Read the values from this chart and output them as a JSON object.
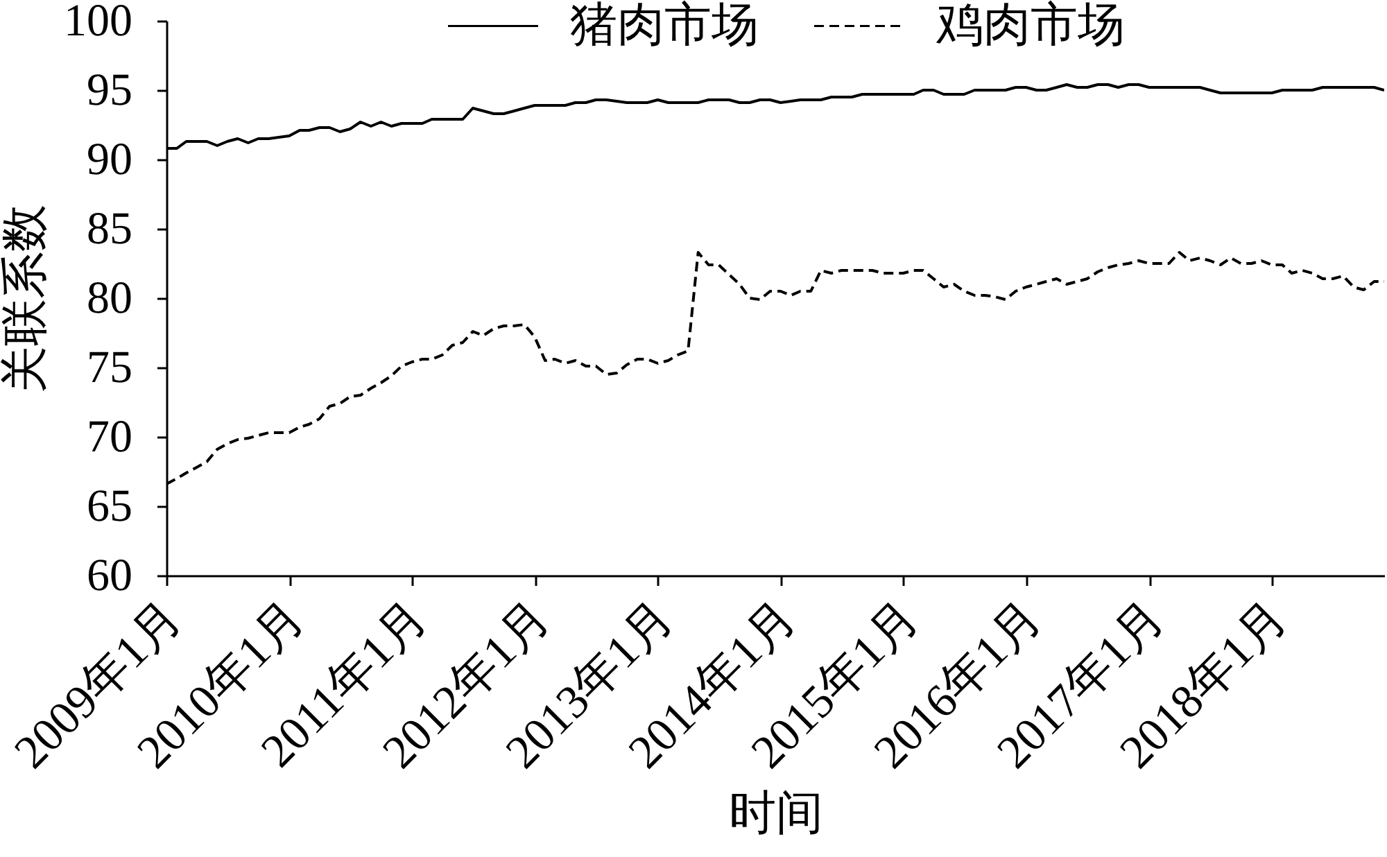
{
  "chart_data": {
    "type": "line",
    "xlabel": "时间",
    "ylabel": "关联系数",
    "legend": "top",
    "x": [
      "2009-01",
      "2009-02",
      "2009-03",
      "2009-04",
      "2009-05",
      "2009-06",
      "2009-07",
      "2009-08",
      "2009-09",
      "2009-10",
      "2009-11",
      "2009-12",
      "2010-01",
      "2010-02",
      "2010-03",
      "2010-04",
      "2010-05",
      "2010-06",
      "2010-07",
      "2010-08",
      "2010-09",
      "2010-10",
      "2010-11",
      "2010-12",
      "2011-01",
      "2011-02",
      "2011-03",
      "2011-04",
      "2011-05",
      "2011-06",
      "2011-07",
      "2011-08",
      "2011-09",
      "2011-10",
      "2011-11",
      "2011-12",
      "2012-01",
      "2012-02",
      "2012-03",
      "2012-04",
      "2012-05",
      "2012-06",
      "2012-07",
      "2012-08",
      "2012-09",
      "2012-10",
      "2012-11",
      "2012-12",
      "2013-01",
      "2013-02",
      "2013-03",
      "2013-04",
      "2013-05",
      "2013-06",
      "2013-07",
      "2013-08",
      "2013-09",
      "2013-10",
      "2013-11",
      "2013-12",
      "2014-01",
      "2014-02",
      "2014-03",
      "2014-04",
      "2014-05",
      "2014-06",
      "2014-07",
      "2014-08",
      "2014-09",
      "2014-10",
      "2014-11",
      "2014-12",
      "2015-01",
      "2015-02",
      "2015-03",
      "2015-04",
      "2015-05",
      "2015-06",
      "2015-07",
      "2015-08",
      "2015-09",
      "2015-10",
      "2015-11",
      "2015-12",
      "2016-01",
      "2016-02",
      "2016-03",
      "2016-04",
      "2016-05",
      "2016-06",
      "2016-07",
      "2016-08",
      "2016-09",
      "2016-10",
      "2016-11",
      "2016-12",
      "2017-01",
      "2017-02",
      "2017-03",
      "2017-04",
      "2017-05",
      "2017-06",
      "2017-07",
      "2017-08",
      "2017-09",
      "2017-10",
      "2017-11",
      "2017-12",
      "2018-01",
      "2018-02",
      "2018-03",
      "2018-04",
      "2018-05",
      "2018-06",
      "2018-07",
      "2018-08",
      "2018-09",
      "2018-10",
      "2018-11",
      "2018-12"
    ],
    "xlim": [
      "2009-01",
      "2018-12"
    ],
    "xticks": [
      {
        "value": "2009-01",
        "label": "2009年1月"
      },
      {
        "value": "2010-01",
        "label": "2010年1月"
      },
      {
        "value": "2011-01",
        "label": "2011年1月"
      },
      {
        "value": "2012-01",
        "label": "2012年1月"
      },
      {
        "value": "2013-01",
        "label": "2013年1月"
      },
      {
        "value": "2014-01",
        "label": "2014年1月"
      },
      {
        "value": "2015-01",
        "label": "2015年1月"
      },
      {
        "value": "2016-01",
        "label": "2016年1月"
      },
      {
        "value": "2017-01",
        "label": "2017年1月"
      },
      {
        "value": "2018-01",
        "label": "2018年1月"
      }
    ],
    "ylim": [
      60,
      100
    ],
    "yticks": [
      60,
      65,
      70,
      75,
      80,
      85,
      90,
      95,
      100
    ],
    "series": [
      {
        "name": "猪肉市场",
        "color": "#000000",
        "line_style": "solid",
        "values": [
          90.8,
          90.8,
          91.3,
          91.3,
          91.3,
          91.0,
          91.3,
          91.5,
          91.2,
          91.5,
          91.5,
          91.6,
          91.7,
          92.1,
          92.1,
          92.3,
          92.3,
          92.0,
          92.2,
          92.7,
          92.4,
          92.7,
          92.4,
          92.6,
          92.6,
          92.6,
          92.9,
          92.9,
          92.9,
          92.9,
          93.7,
          93.5,
          93.3,
          93.3,
          93.5,
          93.7,
          93.9,
          93.9,
          93.9,
          93.9,
          94.1,
          94.1,
          94.3,
          94.3,
          94.2,
          94.1,
          94.1,
          94.1,
          94.3,
          94.1,
          94.1,
          94.1,
          94.1,
          94.3,
          94.3,
          94.3,
          94.1,
          94.1,
          94.3,
          94.3,
          94.1,
          94.2,
          94.3,
          94.3,
          94.3,
          94.5,
          94.5,
          94.5,
          94.7,
          94.7,
          94.7,
          94.7,
          94.7,
          94.7,
          95.0,
          95.0,
          94.7,
          94.7,
          94.7,
          95.0,
          95.0,
          95.0,
          95.0,
          95.2,
          95.2,
          95.0,
          95.0,
          95.2,
          95.4,
          95.2,
          95.2,
          95.4,
          95.4,
          95.2,
          95.4,
          95.4,
          95.2,
          95.2,
          95.2,
          95.2,
          95.2,
          95.2,
          95.0,
          94.8,
          94.8,
          94.8,
          94.8,
          94.8,
          94.8,
          95.0,
          95.0,
          95.0,
          95.0,
          95.2,
          95.2,
          95.2,
          95.2,
          95.2,
          95.2,
          95.0
        ]
      },
      {
        "name": "鸡肉市场",
        "color": "#000000",
        "line_style": "dashed",
        "values": [
          66.6,
          67.0,
          67.4,
          67.8,
          68.2,
          69.1,
          69.5,
          69.8,
          69.9,
          70.1,
          70.3,
          70.3,
          70.3,
          70.7,
          70.9,
          71.3,
          72.2,
          72.4,
          72.9,
          73.0,
          73.5,
          73.9,
          74.4,
          75.1,
          75.4,
          75.6,
          75.6,
          75.9,
          76.6,
          76.8,
          77.6,
          77.3,
          77.8,
          78.0,
          78.0,
          78.1,
          77.2,
          75.5,
          75.6,
          75.3,
          75.5,
          75.1,
          75.1,
          74.5,
          74.6,
          75.2,
          75.6,
          75.6,
          75.3,
          75.5,
          75.9,
          76.2,
          83.3,
          82.4,
          82.4,
          81.7,
          81.0,
          80.0,
          79.9,
          80.5,
          80.5,
          80.2,
          80.5,
          80.5,
          82.0,
          81.8,
          82.0,
          82.0,
          82.0,
          82.0,
          81.8,
          81.8,
          81.8,
          82.0,
          82.0,
          81.4,
          80.8,
          81.0,
          80.5,
          80.2,
          80.2,
          80.1,
          79.9,
          80.5,
          80.8,
          81.0,
          81.2,
          81.4,
          81.0,
          81.2,
          81.4,
          81.9,
          82.2,
          82.4,
          82.5,
          82.7,
          82.5,
          82.5,
          82.5,
          83.3,
          82.7,
          82.9,
          82.7,
          82.4,
          82.9,
          82.5,
          82.5,
          82.7,
          82.4,
          82.4,
          81.8,
          82.0,
          81.8,
          81.4,
          81.4,
          81.6,
          80.8,
          80.6,
          81.2,
          81.2
        ]
      }
    ]
  }
}
